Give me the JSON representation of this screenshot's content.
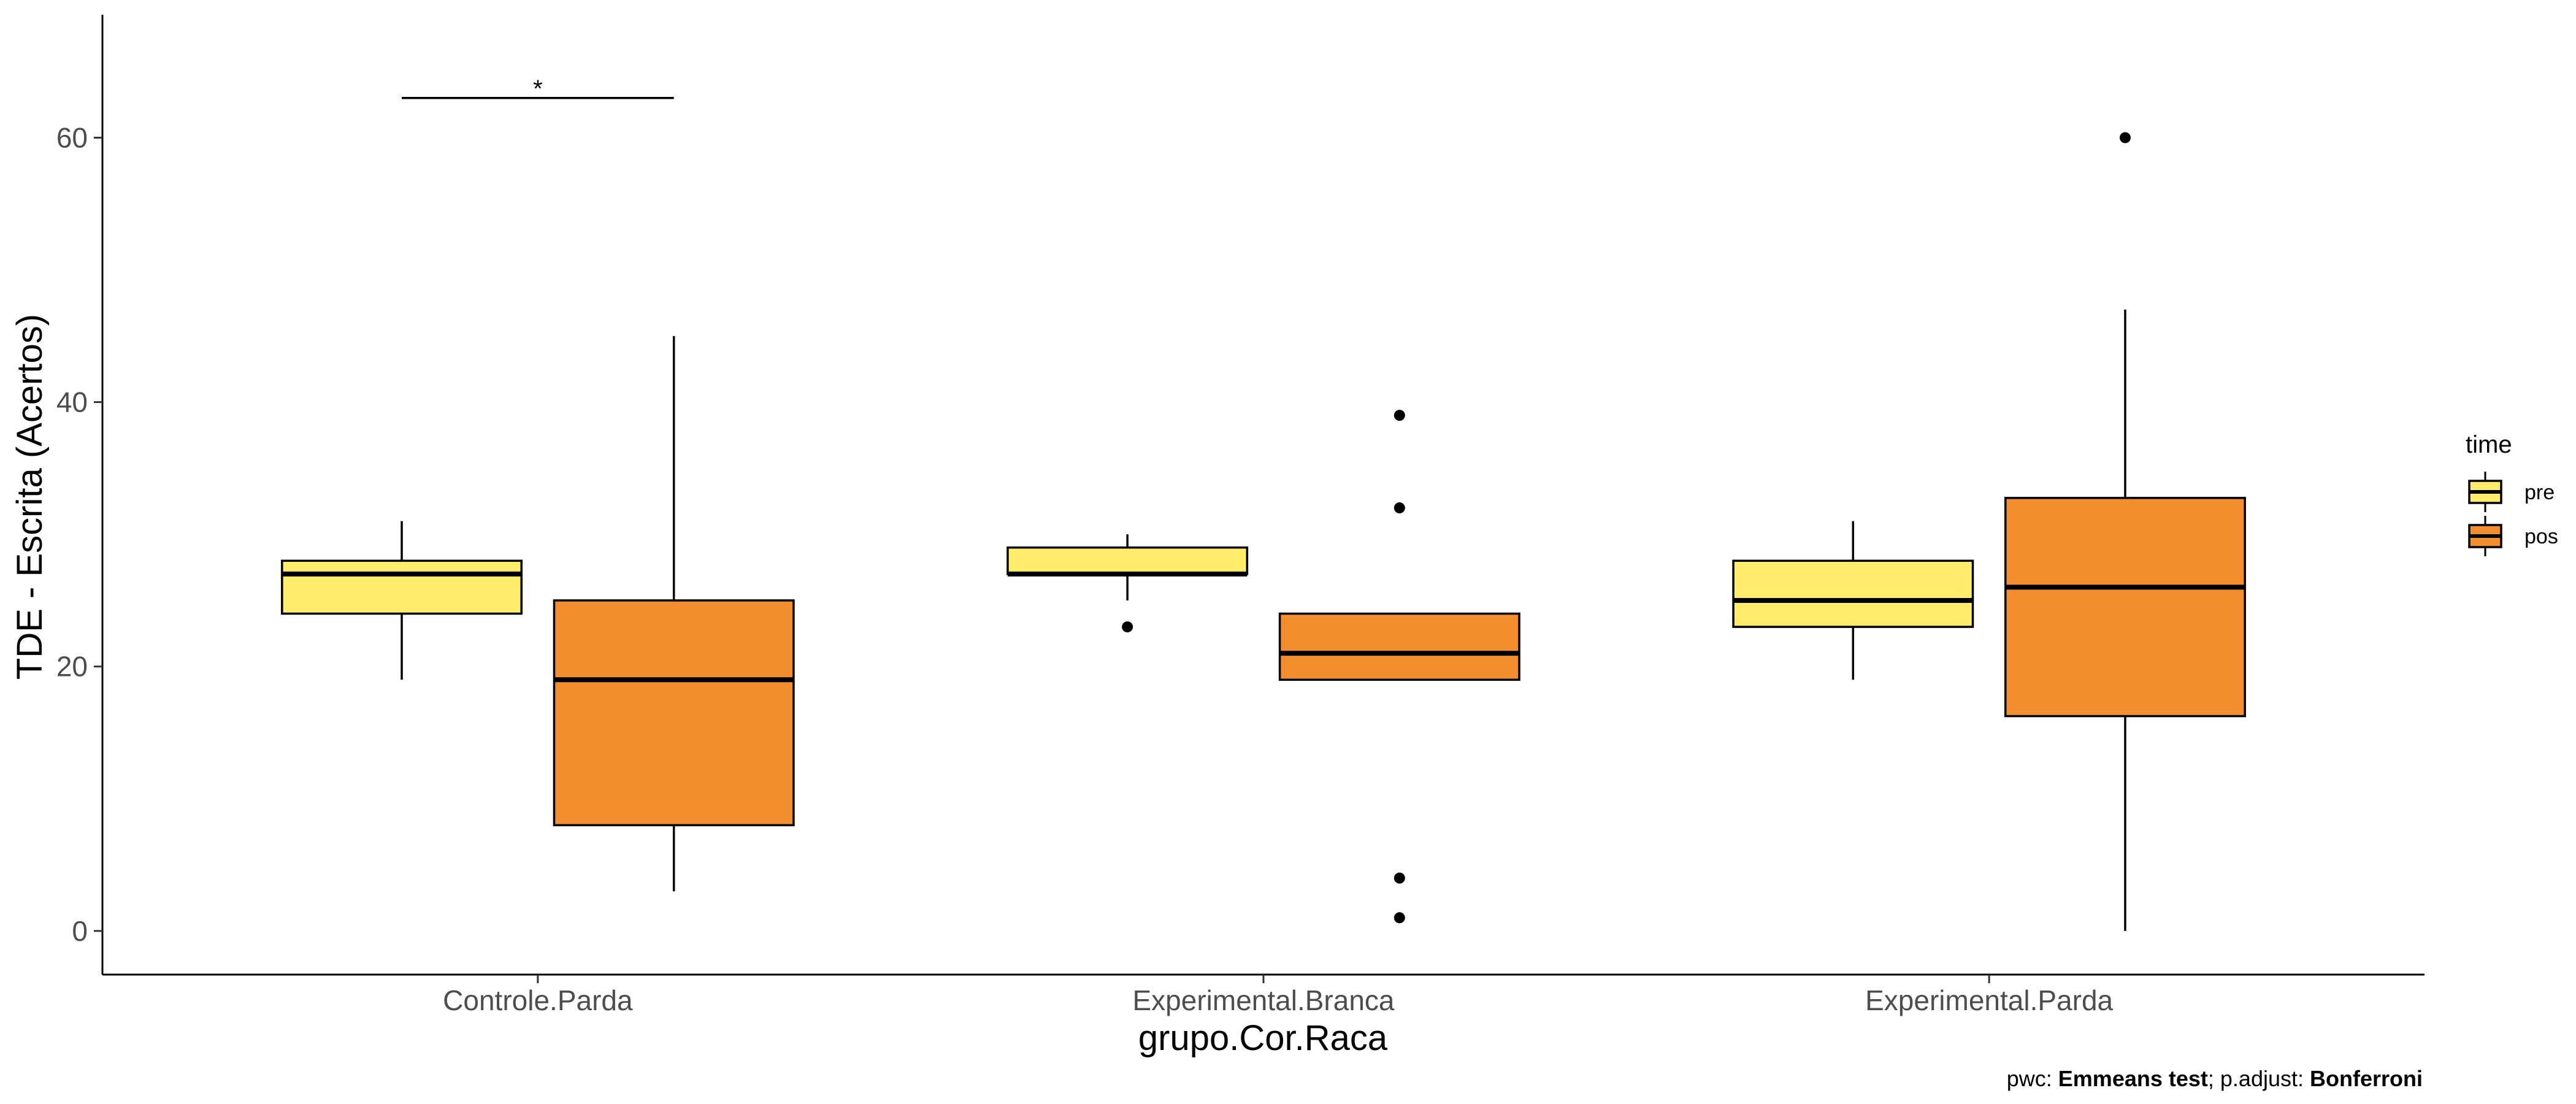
{
  "chart_data": {
    "type": "boxplot",
    "title": "",
    "xlabel": "grupo.Cor.Raca",
    "ylabel": "TDE - Escrita (Acertos)",
    "categories": [
      "Controle.Parda",
      "Experimental.Branca",
      "Experimental.Parda"
    ],
    "ylim": [
      -3.3,
      69.3
    ],
    "yticks": [
      0,
      20,
      40,
      60
    ],
    "grid": false,
    "legend": {
      "title": "time",
      "position": "right"
    },
    "series": [
      {
        "name": "pre",
        "color": "#FFEC6B",
        "boxes": [
          {
            "category": "Controle.Parda",
            "min": 19,
            "q1": 24,
            "median": 27,
            "q3": 28,
            "max": 31,
            "outliers": []
          },
          {
            "category": "Experimental.Branca",
            "min": 25,
            "q1": 27,
            "median": 27,
            "q3": 29,
            "max": 30,
            "outliers": [
              23
            ]
          },
          {
            "category": "Experimental.Parda",
            "min": 19,
            "q1": 23,
            "median": 25,
            "q3": 28,
            "max": 31,
            "outliers": []
          }
        ]
      },
      {
        "name": "pos",
        "color": "#F28E2E",
        "boxes": [
          {
            "category": "Controle.Parda",
            "min": 3,
            "q1": 8,
            "median": 19,
            "q3": 25,
            "max": 45,
            "outliers": []
          },
          {
            "category": "Experimental.Branca",
            "min": 19,
            "q1": 19,
            "median": 21,
            "q3": 24,
            "max": 24,
            "outliers": [
              39,
              32,
              4,
              1
            ]
          },
          {
            "category": "Experimental.Parda",
            "min": 0,
            "q1": 16.25,
            "median": 26,
            "q3": 32.75,
            "max": 47,
            "outliers": [
              60
            ]
          }
        ]
      }
    ],
    "annotations": [
      {
        "category": "Controle.Parda",
        "from": "pre",
        "to": "pos",
        "y": 63,
        "label": "*"
      }
    ]
  },
  "caption": {
    "prefix": "pwc: ",
    "test": "Emmeans test",
    "middle": "; p.adjust: ",
    "method": "Bonferroni"
  }
}
